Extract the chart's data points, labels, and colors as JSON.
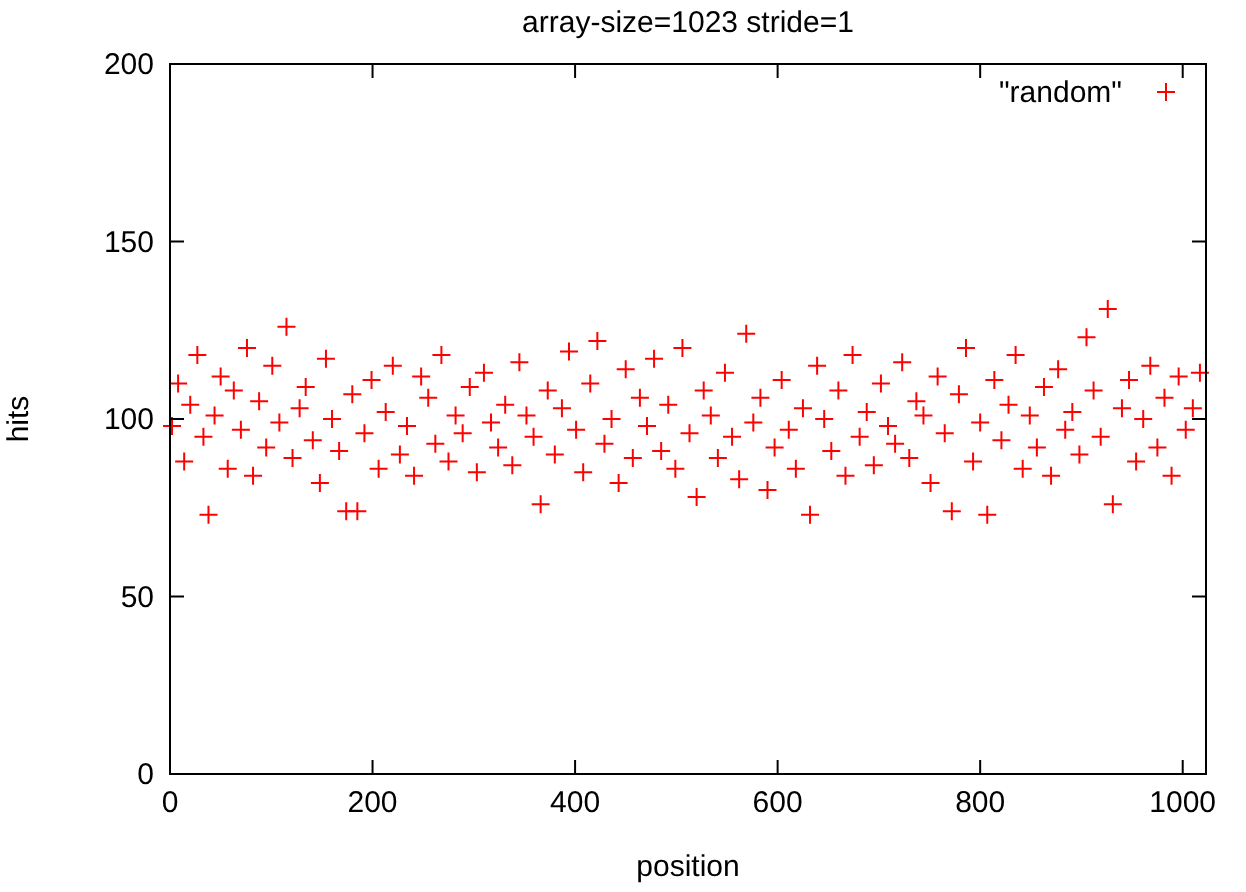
{
  "chart_data": {
    "type": "scatter",
    "title": "array-size=1023  stride=1",
    "xlabel": "position",
    "ylabel": "hits",
    "xlim": [
      0,
      1023
    ],
    "ylim": [
      0,
      200
    ],
    "xticks": [
      0,
      200,
      400,
      600,
      800,
      1000
    ],
    "yticks": [
      0,
      50,
      100,
      150,
      200
    ],
    "legend": "top right",
    "marker": "cross",
    "grid": false,
    "series": [
      {
        "name": "\"random\"",
        "color": "#ff0000",
        "x": [
          2,
          8,
          14,
          20,
          27,
          33,
          38,
          44,
          50,
          57,
          63,
          70,
          76,
          82,
          88,
          95,
          101,
          108,
          115,
          121,
          128,
          134,
          141,
          148,
          154,
          160,
          167,
          174,
          180,
          185,
          192,
          199,
          206,
          213,
          220,
          227,
          234,
          241,
          248,
          255,
          262,
          268,
          275,
          282,
          289,
          296,
          303,
          310,
          317,
          324,
          331,
          338,
          345,
          352,
          359,
          366,
          373,
          380,
          387,
          394,
          401,
          408,
          415,
          422,
          429,
          436,
          443,
          450,
          457,
          464,
          471,
          478,
          485,
          492,
          499,
          506,
          513,
          520,
          527,
          534,
          541,
          548,
          555,
          562,
          569,
          576,
          583,
          590,
          597,
          604,
          611,
          618,
          625,
          632,
          639,
          646,
          653,
          660,
          667,
          674,
          681,
          688,
          695,
          702,
          709,
          716,
          723,
          730,
          737,
          744,
          751,
          758,
          765,
          772,
          779,
          786,
          793,
          800,
          807,
          814,
          821,
          828,
          835,
          842,
          849,
          856,
          863,
          870,
          877,
          884,
          891,
          898,
          905,
          912,
          919,
          926,
          931,
          940,
          947,
          954,
          961,
          968,
          975,
          982,
          989,
          996,
          1003,
          1010,
          1017
        ],
        "values": [
          98,
          110,
          88,
          104,
          118,
          95,
          73,
          101,
          112,
          86,
          108,
          97,
          120,
          84,
          105,
          92,
          115,
          99,
          126,
          89,
          103,
          109,
          94,
          82,
          117,
          100,
          91,
          74,
          107,
          74,
          96,
          111,
          86,
          102,
          115,
          90,
          98,
          84,
          112,
          106,
          93,
          118,
          88,
          101,
          96,
          109,
          85,
          113,
          99,
          92,
          104,
          87,
          116,
          101,
          95,
          76,
          108,
          90,
          103,
          119,
          97,
          85,
          110,
          122,
          93,
          100,
          82,
          114,
          89,
          106,
          98,
          117,
          91,
          104,
          86,
          120,
          96,
          78,
          108,
          101,
          89,
          113,
          95,
          83,
          124,
          99,
          106,
          80,
          92,
          111,
          97,
          86,
          103,
          73,
          115,
          100,
          91,
          108,
          84,
          118,
          95,
          102,
          87,
          110,
          98,
          93,
          116,
          89,
          105,
          101,
          82,
          112,
          96,
          74,
          107,
          120,
          88,
          99,
          73,
          111,
          94,
          104,
          118,
          86,
          101,
          92,
          109,
          84,
          114,
          97,
          102,
          90,
          123,
          108,
          95,
          131,
          76,
          103,
          111,
          88,
          100,
          115,
          92,
          106,
          84,
          112,
          97,
          103,
          113
        ]
      }
    ]
  }
}
